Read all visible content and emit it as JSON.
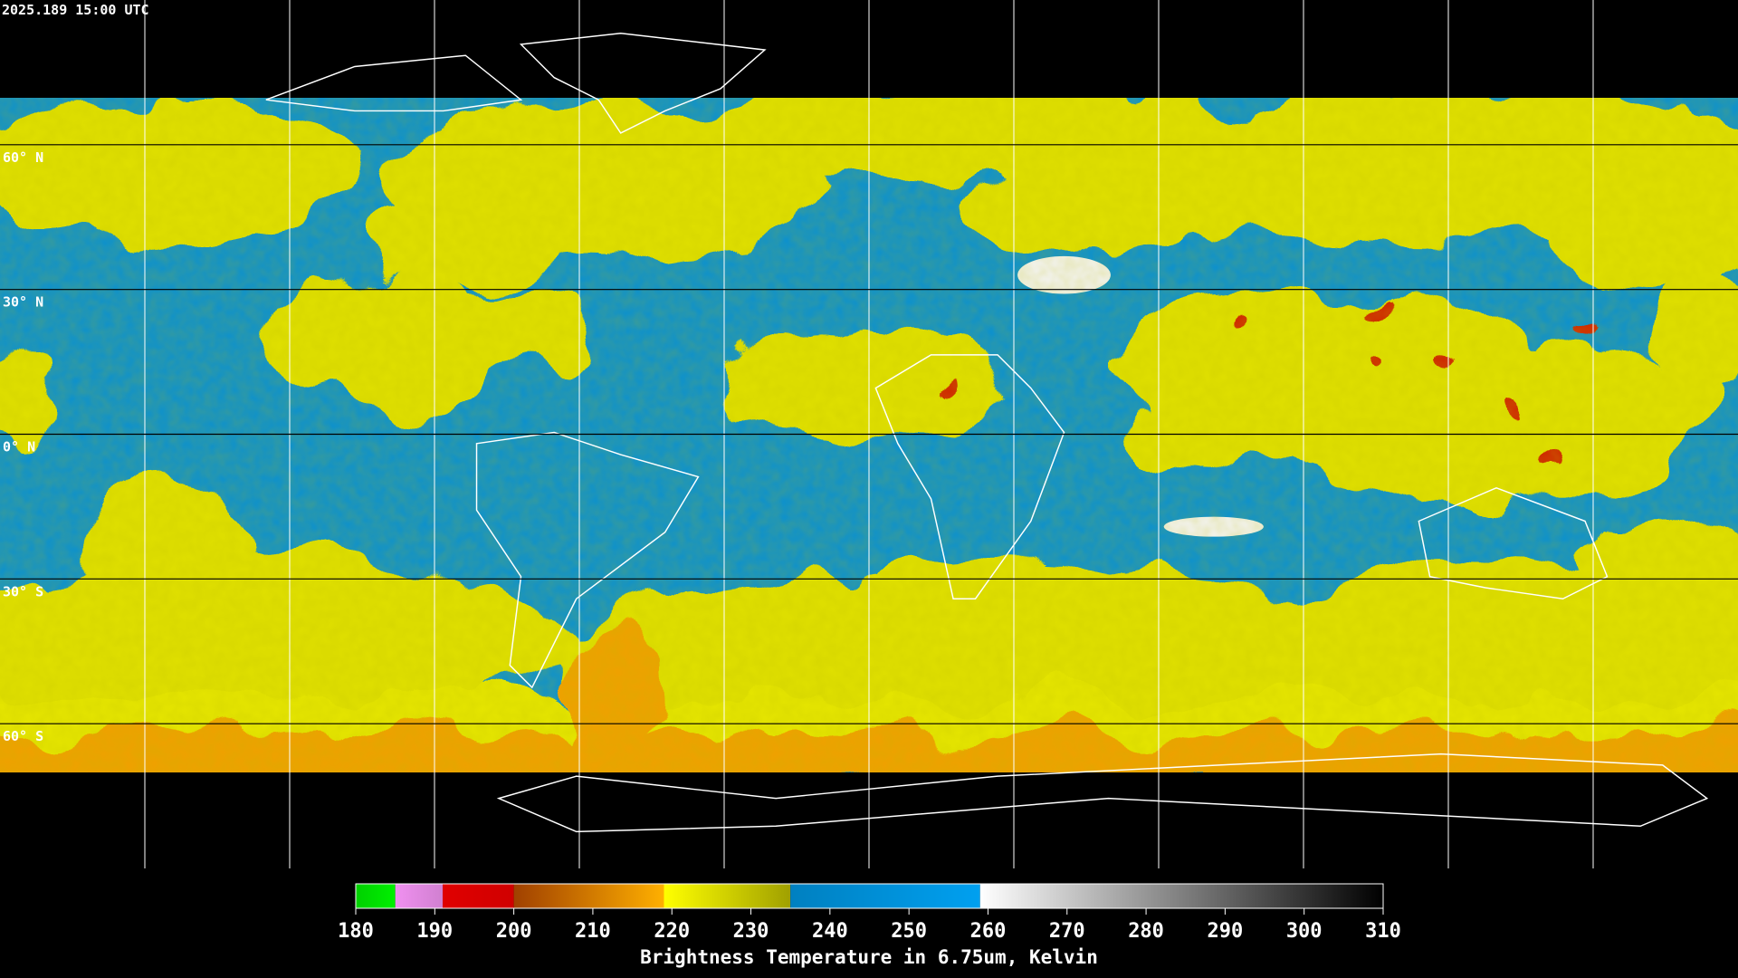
{
  "header": {
    "title": "2025.189 15:00 UTC"
  },
  "map": {
    "lat_lines": [
      {
        "value": 60,
        "label": "60° N"
      },
      {
        "value": 30,
        "label": "30° N"
      },
      {
        "value": 0,
        "label": "0° N"
      },
      {
        "value": -30,
        "label": "30° S"
      },
      {
        "value": -60,
        "label": "60° S"
      }
    ]
  },
  "colorbar": {
    "range": [
      180,
      310
    ],
    "ticks": [
      180,
      190,
      200,
      210,
      220,
      230,
      240,
      250,
      260,
      270,
      280,
      290,
      300,
      310
    ],
    "stops": [
      {
        "from": 180,
        "to": 185,
        "colors": [
          "#00d000",
          "#00f000"
        ]
      },
      {
        "from": 185,
        "to": 191,
        "colors": [
          "#f090f0",
          "#d080d0"
        ]
      },
      {
        "from": 191,
        "to": 200,
        "colors": [
          "#e00000",
          "#d00000"
        ]
      },
      {
        "from": 200,
        "to": 219,
        "colors": [
          "#a04000",
          "#ffb000"
        ]
      },
      {
        "from": 219,
        "to": 235,
        "colors": [
          "#ffff00",
          "#a0a000"
        ]
      },
      {
        "from": 235,
        "to": 259,
        "colors": [
          "#0080c0",
          "#00a0f0"
        ]
      },
      {
        "from": 259,
        "to": 310,
        "colors": [
          "#ffffff",
          "#000000"
        ]
      }
    ],
    "label": "Brightness Temperature in 6.75um, Kelvin"
  }
}
